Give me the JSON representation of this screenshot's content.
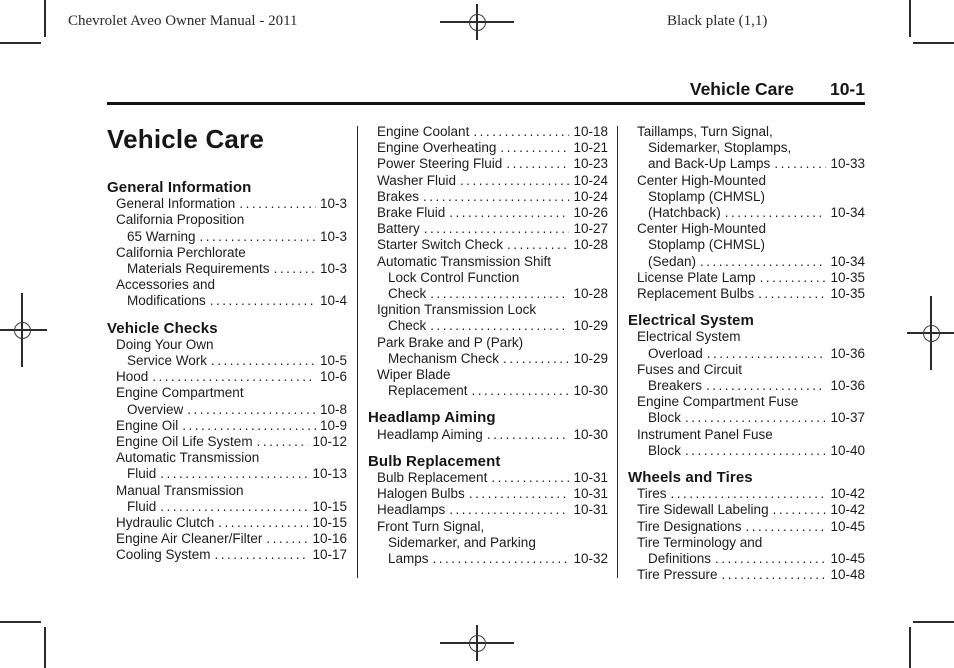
{
  "print_annotations": {
    "left": "Chevrolet Aveo Owner Manual - 2011",
    "right": "Black plate (1,1)"
  },
  "running_header": {
    "chapter": "Vehicle Care",
    "page": "10-1"
  },
  "chapter_title": "Vehicle Care",
  "columns": [
    {
      "sections": [
        {
          "heading": "General Information",
          "entries": [
            {
              "lines": [
                "General Information"
              ],
              "page": "10-3"
            },
            {
              "lines": [
                "California Proposition",
                "65 Warning"
              ],
              "page": "10-3"
            },
            {
              "lines": [
                "California Perchlorate",
                "Materials Requirements"
              ],
              "page": "10-3"
            },
            {
              "lines": [
                "Accessories and",
                "Modifications"
              ],
              "page": "10-4"
            }
          ]
        },
        {
          "heading": "Vehicle Checks",
          "entries": [
            {
              "lines": [
                "Doing Your Own",
                "Service Work"
              ],
              "page": "10-5"
            },
            {
              "lines": [
                "Hood"
              ],
              "page": "10-6"
            },
            {
              "lines": [
                "Engine Compartment",
                "Overview"
              ],
              "page": "10-8"
            },
            {
              "lines": [
                "Engine Oil"
              ],
              "page": "10-9"
            },
            {
              "lines": [
                "Engine Oil Life System"
              ],
              "page": "10-12"
            },
            {
              "lines": [
                "Automatic Transmission",
                "Fluid"
              ],
              "page": "10-13"
            },
            {
              "lines": [
                "Manual Transmission",
                "Fluid"
              ],
              "page": "10-15"
            },
            {
              "lines": [
                "Hydraulic Clutch"
              ],
              "page": "10-15"
            },
            {
              "lines": [
                "Engine Air Cleaner/Filter"
              ],
              "page": "10-16"
            },
            {
              "lines": [
                "Cooling System"
              ],
              "page": "10-17"
            }
          ]
        }
      ]
    },
    {
      "sections": [
        {
          "heading": null,
          "entries": [
            {
              "lines": [
                "Engine Coolant"
              ],
              "page": "10-18"
            },
            {
              "lines": [
                "Engine Overheating"
              ],
              "page": "10-21"
            },
            {
              "lines": [
                "Power Steering Fluid"
              ],
              "page": "10-23"
            },
            {
              "lines": [
                "Washer Fluid"
              ],
              "page": "10-24"
            },
            {
              "lines": [
                "Brakes"
              ],
              "page": "10-24"
            },
            {
              "lines": [
                "Brake Fluid"
              ],
              "page": "10-26"
            },
            {
              "lines": [
                "Battery"
              ],
              "page": "10-27"
            },
            {
              "lines": [
                "Starter Switch Check"
              ],
              "page": "10-28"
            },
            {
              "lines": [
                "Automatic Transmission Shift",
                "Lock Control Function",
                "Check"
              ],
              "page": "10-28"
            },
            {
              "lines": [
                "Ignition Transmission Lock",
                "Check"
              ],
              "page": "10-29"
            },
            {
              "lines": [
                "Park Brake and P (Park)",
                "Mechanism Check"
              ],
              "page": "10-29"
            },
            {
              "lines": [
                "Wiper Blade",
                "Replacement"
              ],
              "page": "10-30"
            }
          ]
        },
        {
          "heading": "Headlamp Aiming",
          "entries": [
            {
              "lines": [
                "Headlamp Aiming"
              ],
              "page": "10-30"
            }
          ]
        },
        {
          "heading": "Bulb Replacement",
          "entries": [
            {
              "lines": [
                "Bulb Replacement"
              ],
              "page": "10-31"
            },
            {
              "lines": [
                "Halogen Bulbs"
              ],
              "page": "10-31"
            },
            {
              "lines": [
                "Headlamps"
              ],
              "page": "10-31"
            },
            {
              "lines": [
                "Front Turn Signal,",
                "Sidemarker, and Parking",
                "Lamps"
              ],
              "page": "10-32"
            }
          ]
        }
      ]
    },
    {
      "sections": [
        {
          "heading": null,
          "entries": [
            {
              "lines": [
                "Taillamps, Turn Signal,",
                "Sidemarker, Stoplamps,",
                "and Back-Up Lamps"
              ],
              "page": "10-33"
            },
            {
              "lines": [
                "Center High-Mounted",
                "Stoplamp (CHMSL)",
                "(Hatchback)"
              ],
              "page": "10-34"
            },
            {
              "lines": [
                "Center High-Mounted",
                "Stoplamp (CHMSL)",
                "(Sedan)"
              ],
              "page": "10-34"
            },
            {
              "lines": [
                "License Plate Lamp"
              ],
              "page": "10-35"
            },
            {
              "lines": [
                "Replacement Bulbs"
              ],
              "page": "10-35"
            }
          ]
        },
        {
          "heading": "Electrical System",
          "entries": [
            {
              "lines": [
                "Electrical System",
                "Overload"
              ],
              "page": "10-36"
            },
            {
              "lines": [
                "Fuses and Circuit",
                "Breakers"
              ],
              "page": "10-36"
            },
            {
              "lines": [
                "Engine Compartment Fuse",
                "Block"
              ],
              "page": "10-37"
            },
            {
              "lines": [
                "Instrument Panel Fuse",
                "Block"
              ],
              "page": "10-40"
            }
          ]
        },
        {
          "heading": "Wheels and Tires",
          "entries": [
            {
              "lines": [
                "Tires"
              ],
              "page": "10-42"
            },
            {
              "lines": [
                "Tire Sidewall Labeling"
              ],
              "page": "10-42"
            },
            {
              "lines": [
                "Tire Designations"
              ],
              "page": "10-45"
            },
            {
              "lines": [
                "Tire Terminology and",
                "Definitions"
              ],
              "page": "10-45"
            },
            {
              "lines": [
                "Tire Pressure"
              ],
              "page": "10-48"
            }
          ]
        }
      ]
    }
  ]
}
